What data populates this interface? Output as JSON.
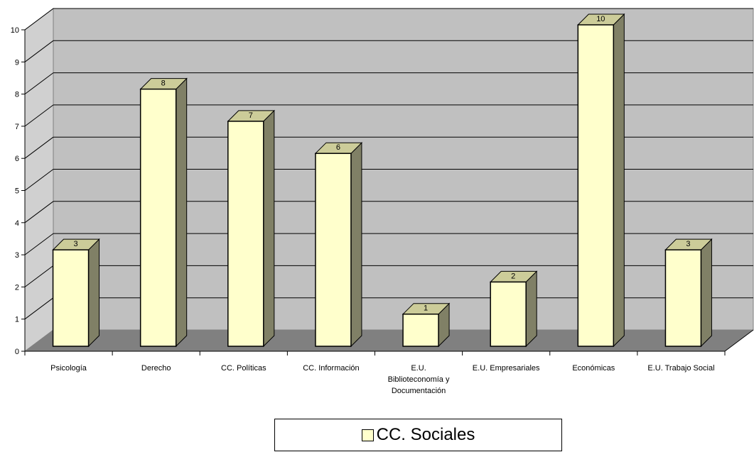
{
  "chart_data": {
    "type": "bar",
    "categories": [
      "Psicología",
      "Derecho",
      "CC. Políticas",
      "CC. Información",
      "E.U. Biblioteconomía y Documentación",
      "E.U. Empresariales",
      "Económicas",
      "E.U. Trabajo Social"
    ],
    "category_lines": [
      [
        "Psicología"
      ],
      [
        "Derecho"
      ],
      [
        "CC. Políticas"
      ],
      [
        "CC. Información"
      ],
      [
        "E.U.",
        "Biblioteconomía y",
        "Documentación"
      ],
      [
        "E.U. Empresariales"
      ],
      [
        "Económicas"
      ],
      [
        "E.U. Trabajo Social"
      ]
    ],
    "series": [
      {
        "name": "CC. Sociales",
        "values": [
          3,
          8,
          7,
          6,
          1,
          2,
          10,
          3
        ]
      }
    ],
    "ylim": [
      0,
      10
    ],
    "yticks": [
      "0",
      "1",
      "2",
      "3",
      "4",
      "5",
      "6",
      "7",
      "8",
      "9",
      "10"
    ],
    "grid": true,
    "three_d": true,
    "legend_position": "bottom",
    "colors": {
      "bar_front": "#ffffcc",
      "bar_top": "#cccc99",
      "bar_side": "#808066",
      "back_wall": "#c0c0c0",
      "side_wall": "#d0d0d0",
      "floor": "#808080"
    }
  }
}
